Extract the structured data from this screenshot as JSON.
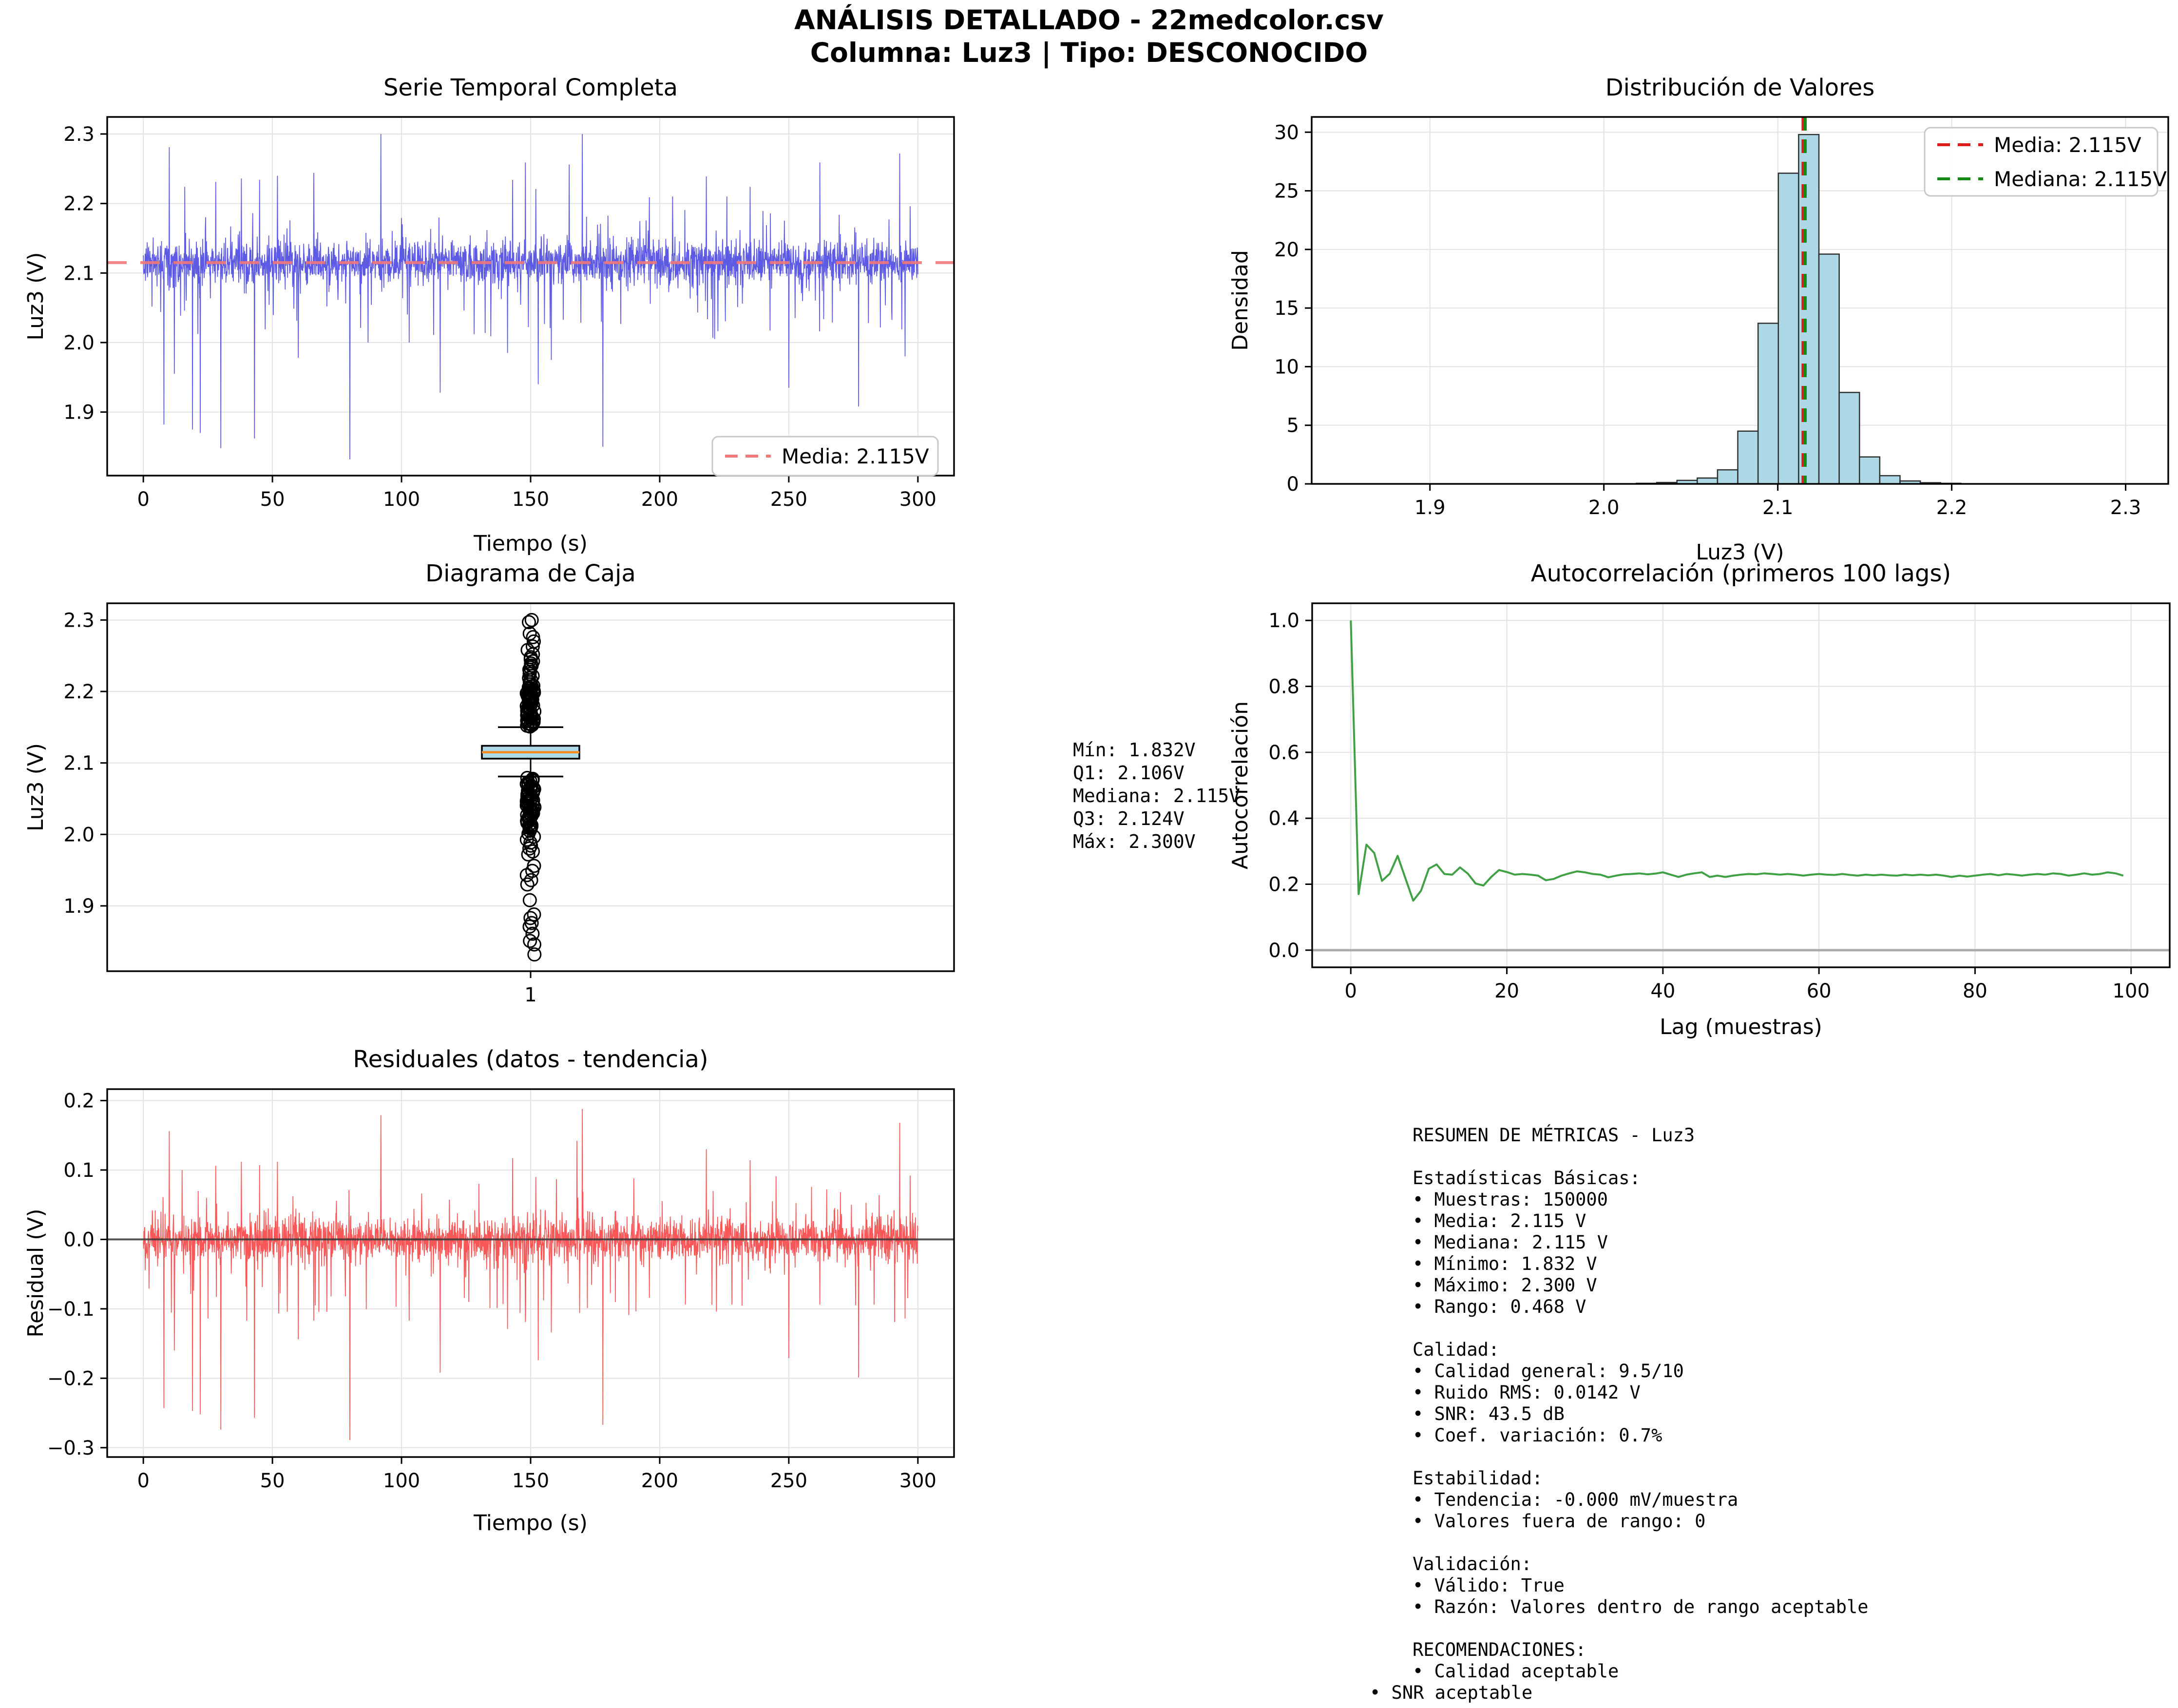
{
  "header": {
    "line1": "ANÁLISIS DETALLADO - 22medcolor.csv",
    "line2": "Columna: Luz3 | Tipo: DESCONOCIDO"
  },
  "annotations": {
    "box_stats": {
      "lines": [
        "Mín: 1.832V",
        "Q1: 2.106V",
        "Mediana: 2.115V",
        "Q3: 2.124V",
        "Máx: 2.300V"
      ]
    },
    "metrics_panel": {
      "lines": [
        "RESUMEN DE MÉTRICAS - Luz3",
        "",
        "Estadísticas Básicas:",
        "• Muestras: 150000",
        "• Media: 2.115 V",
        "• Mediana: 2.115 V",
        "• Mínimo: 1.832 V",
        "• Máximo: 2.300 V",
        "• Rango: 0.468 V",
        "",
        "Calidad:",
        "• Calidad general: 9.5/10",
        "• Ruido RMS: 0.0142 V",
        "• SNR: 43.5 dB",
        "• Coef. variación: 0.7%",
        "",
        "Estabilidad:",
        "• Tendencia: -0.000 mV/muestra",
        "• Valores fuera de rango: 0",
        "",
        "Validación:",
        "• Válido: True",
        "• Razón: Valores dentro de rango aceptable",
        "",
        "RECOMENDACIONES:",
        "• Calidad aceptable",
        "• SNR aceptable"
      ]
    }
  },
  "chart_data": [
    {
      "id": "serie_temporal",
      "type": "line",
      "title": "Serie Temporal Completa",
      "xlabel": "Tiempo (s)",
      "ylabel": "Luz3 (V)",
      "xlim": [
        -14,
        314
      ],
      "ylim": [
        1.8086,
        2.3245
      ],
      "xticks": [
        {
          "v": 0,
          "l": "0"
        },
        {
          "v": 50,
          "l": "50"
        },
        {
          "v": 100,
          "l": "100"
        },
        {
          "v": 150,
          "l": "150"
        },
        {
          "v": 200,
          "l": "200"
        },
        {
          "v": 250,
          "l": "250"
        },
        {
          "v": 300,
          "l": "300"
        }
      ],
      "yticks": [
        {
          "v": 1.9,
          "l": "1.9"
        },
        {
          "v": 2.0,
          "l": "2.0"
        },
        {
          "v": 2.1,
          "l": "2.1"
        },
        {
          "v": 2.2,
          "l": "2.2"
        },
        {
          "v": 2.3,
          "l": "2.3"
        }
      ],
      "line_color": "#4b48e0",
      "mean_line": {
        "value": 2.115,
        "color": "#f07878",
        "label": "Media: 2.115V"
      },
      "legend": {
        "entries": [
          {
            "label": "Media: 2.115V",
            "color": "#f07878",
            "dashed": true
          }
        ]
      },
      "signal": {
        "n": 2600,
        "x_max": 300,
        "mean": 2.115,
        "sigma": 0.0155,
        "seed": 1337,
        "minor_down": {
          "prob": 0.022,
          "base": 0.035,
          "extra": 0.075
        },
        "minor_up": {
          "prob": 0.016,
          "base": 0.032,
          "extra": 0.045
        },
        "spikes_up": [
          [
            10,
            2.281
          ],
          [
            16,
            2.224
          ],
          [
            28,
            2.231
          ],
          [
            38,
            2.236
          ],
          [
            45,
            2.234
          ],
          [
            52,
            2.24
          ],
          [
            66,
            2.244
          ],
          [
            92,
            2.3
          ],
          [
            143,
            2.234
          ],
          [
            148,
            2.259
          ],
          [
            152,
            2.221
          ],
          [
            165,
            2.256
          ],
          [
            170,
            2.3
          ],
          [
            196,
            2.209
          ],
          [
            205,
            2.21
          ],
          [
            218,
            2.239
          ],
          [
            226,
            2.21
          ],
          [
            235,
            2.224
          ],
          [
            262,
            2.259
          ],
          [
            293,
            2.272
          ],
          [
            297,
            2.196
          ]
        ],
        "spikes_down": [
          [
            8,
            1.882
          ],
          [
            12,
            1.955
          ],
          [
            19,
            1.875
          ],
          [
            22,
            1.87
          ],
          [
            30,
            1.848
          ],
          [
            43,
            1.862
          ],
          [
            60,
            1.978
          ],
          [
            80,
            1.832
          ],
          [
            87,
            2.0
          ],
          [
            103,
            2.0
          ],
          [
            115,
            1.928
          ],
          [
            141,
            1.985
          ],
          [
            153,
            1.94
          ],
          [
            158,
            1.975
          ],
          [
            178,
            1.85
          ],
          [
            250,
            1.935
          ],
          [
            277,
            1.908
          ],
          [
            295,
            1.98
          ]
        ]
      }
    },
    {
      "id": "distribucion",
      "type": "histogram",
      "title": "Distribución de Valores",
      "xlabel": "Luz3 (V)",
      "ylabel": "Densidad",
      "xlim": [
        1.832,
        2.3245
      ],
      "ylim": [
        0,
        31.3
      ],
      "xticks": [
        {
          "v": 1.9,
          "l": "1.9"
        },
        {
          "v": 2.0,
          "l": "2.0"
        },
        {
          "v": 2.1,
          "l": "2.1"
        },
        {
          "v": 2.2,
          "l": "2.2"
        },
        {
          "v": 2.3,
          "l": "2.3"
        }
      ],
      "yticks": [
        {
          "v": 0,
          "l": "0"
        },
        {
          "v": 5,
          "l": "5"
        },
        {
          "v": 10,
          "l": "10"
        },
        {
          "v": 15,
          "l": "15"
        },
        {
          "v": 20,
          "l": "20"
        },
        {
          "v": 25,
          "l": "25"
        },
        {
          "v": 30,
          "l": "30"
        }
      ],
      "bar_color": "#add8e6",
      "bar_edge": "#2f2f2f",
      "bin_start": 2.0187,
      "bin_width": 0.01166,
      "densities": [
        0.05,
        0.12,
        0.3,
        0.5,
        1.2,
        4.5,
        13.7,
        26.5,
        29.8,
        19.6,
        7.8,
        2.3,
        0.7,
        0.25,
        0.1,
        0.05
      ],
      "mean_line": {
        "value": 2.1145,
        "color": "#dd1c1c",
        "label": "Media: 2.115V"
      },
      "median_line": {
        "value": 2.1158,
        "color": "#168a16",
        "label": "Mediana: 2.115V"
      },
      "legend": {
        "entries": [
          {
            "label": "Media: 2.115V",
            "color": "#dd1c1c",
            "dashed": true
          },
          {
            "label": "Mediana: 2.115V",
            "color": "#168a16",
            "dashed": true
          }
        ]
      }
    },
    {
      "id": "diagrama_caja",
      "type": "boxplot",
      "title": "Diagrama de Caja",
      "xlabel": "",
      "ylabel": "Luz3 (V)",
      "xlim": [
        0,
        2
      ],
      "ylim": [
        1.8086,
        2.3234
      ],
      "xticks": [
        {
          "v": 1,
          "l": "1"
        }
      ],
      "yticks": [
        {
          "v": 1.9,
          "l": "1.9"
        },
        {
          "v": 2.0,
          "l": "2.0"
        },
        {
          "v": 2.1,
          "l": "2.1"
        },
        {
          "v": 2.2,
          "l": "2.2"
        },
        {
          "v": 2.3,
          "l": "2.3"
        }
      ],
      "box": {
        "q1": 2.106,
        "median": 2.115,
        "q3": 2.124,
        "whisker_low": 2.081,
        "whisker_high": 2.15,
        "center": 1,
        "fill": "#add8e6",
        "edge": "#000000",
        "median_color": "#ff8c1a"
      },
      "outliers": {
        "seed": 77,
        "above_dense": {
          "from": 2.151,
          "to": 2.208,
          "count": 55
        },
        "above_mid": {
          "from": 2.21,
          "to": 2.248,
          "count": 14
        },
        "above_sparse": [
          2.252,
          2.258,
          2.263,
          2.27,
          2.276,
          2.281,
          2.297,
          2.3
        ],
        "below_dense": {
          "from": 2.008,
          "to": 2.079,
          "count": 60
        },
        "below_mid": {
          "from": 1.972,
          "to": 2.005,
          "count": 9
        },
        "below_sparse": [
          1.956,
          1.949,
          1.943,
          1.936,
          1.93,
          1.908,
          1.888,
          1.883,
          1.876,
          1.871,
          1.861,
          1.851,
          1.846,
          1.832
        ]
      }
    },
    {
      "id": "autocorrelacion",
      "type": "line_values",
      "title": "Autocorrelación (primeros 100 lags)",
      "xlabel": "Lag (muestras)",
      "ylabel": "Autocorrelación",
      "xlim": [
        -4.95,
        104.95
      ],
      "ylim": [
        -0.052,
        1.052
      ],
      "xticks": [
        {
          "v": 0,
          "l": "0"
        },
        {
          "v": 20,
          "l": "20"
        },
        {
          "v": 40,
          "l": "40"
        },
        {
          "v": 60,
          "l": "60"
        },
        {
          "v": 80,
          "l": "80"
        },
        {
          "v": 100,
          "l": "100"
        }
      ],
      "yticks": [
        {
          "v": 0.0,
          "l": "0.0"
        },
        {
          "v": 0.2,
          "l": "0.2"
        },
        {
          "v": 0.4,
          "l": "0.4"
        },
        {
          "v": 0.6,
          "l": "0.6"
        },
        {
          "v": 0.8,
          "l": "0.8"
        },
        {
          "v": 1.0,
          "l": "1.0"
        }
      ],
      "line_color": "#3fa044",
      "zero_line": {
        "value": 0,
        "color": "#9a9a9a"
      },
      "values": [
        1.0,
        0.17,
        0.32,
        0.295,
        0.21,
        0.232,
        0.286,
        0.218,
        0.15,
        0.18,
        0.247,
        0.26,
        0.231,
        0.229,
        0.251,
        0.232,
        0.202,
        0.196,
        0.222,
        0.243,
        0.237,
        0.229,
        0.231,
        0.229,
        0.226,
        0.212,
        0.216,
        0.226,
        0.233,
        0.239,
        0.236,
        0.231,
        0.229,
        0.221,
        0.226,
        0.23,
        0.231,
        0.233,
        0.23,
        0.232,
        0.236,
        0.229,
        0.222,
        0.229,
        0.233,
        0.236,
        0.222,
        0.226,
        0.222,
        0.226,
        0.229,
        0.231,
        0.23,
        0.233,
        0.231,
        0.229,
        0.231,
        0.229,
        0.226,
        0.229,
        0.231,
        0.229,
        0.228,
        0.231,
        0.228,
        0.226,
        0.229,
        0.227,
        0.229,
        0.227,
        0.226,
        0.229,
        0.227,
        0.229,
        0.227,
        0.229,
        0.226,
        0.222,
        0.226,
        0.223,
        0.226,
        0.229,
        0.231,
        0.227,
        0.231,
        0.229,
        0.226,
        0.229,
        0.231,
        0.229,
        0.233,
        0.231,
        0.226,
        0.229,
        0.233,
        0.229,
        0.231,
        0.236,
        0.233,
        0.226
      ]
    },
    {
      "id": "residuales",
      "type": "line",
      "title": "Residuales (datos - tendencia)",
      "xlabel": "Tiempo (s)",
      "ylabel": "Residual (V)",
      "xlim": [
        -14,
        314
      ],
      "ylim": [
        -0.3135,
        0.2165
      ],
      "xticks": [
        {
          "v": 0,
          "l": "0"
        },
        {
          "v": 50,
          "l": "50"
        },
        {
          "v": 100,
          "l": "100"
        },
        {
          "v": 150,
          "l": "150"
        },
        {
          "v": 200,
          "l": "200"
        },
        {
          "v": 250,
          "l": "250"
        },
        {
          "v": 300,
          "l": "300"
        }
      ],
      "yticks": [
        {
          "v": -0.3,
          "l": "−0.3"
        },
        {
          "v": -0.2,
          "l": "−0.2"
        },
        {
          "v": -0.1,
          "l": "−0.1"
        },
        {
          "v": 0.0,
          "l": "0.0"
        },
        {
          "v": 0.1,
          "l": "0.1"
        },
        {
          "v": 0.2,
          "l": "0.2"
        }
      ],
      "line_color": "#f64545",
      "zero_line": {
        "value": 0,
        "color": "#3a3a3a"
      },
      "signal": {
        "n": 2600,
        "x_max": 300,
        "mean": 0,
        "sigma": 0.0155,
        "seed": 2024,
        "minor_down": {
          "prob": 0.022,
          "base": 0.035,
          "extra": 0.075
        },
        "minor_up": {
          "prob": 0.016,
          "base": 0.032,
          "extra": 0.045
        },
        "spikes_up": [
          [
            10,
            0.156
          ],
          [
            15,
            0.1
          ],
          [
            28,
            0.106
          ],
          [
            38,
            0.112
          ],
          [
            45,
            0.107
          ],
          [
            52,
            0.112
          ],
          [
            60,
            0.094
          ],
          [
            66,
            0.123
          ],
          [
            80,
            0.088
          ],
          [
            92,
            0.179
          ],
          [
            103,
            0.08
          ],
          [
            115,
            0.086
          ],
          [
            130,
            0.08
          ],
          [
            143,
            0.117
          ],
          [
            148,
            0.144
          ],
          [
            152,
            0.09
          ],
          [
            160,
            0.087
          ],
          [
            168,
            0.142
          ],
          [
            170,
            0.188
          ],
          [
            178,
            0.094
          ],
          [
            190,
            0.088
          ],
          [
            196,
            0.099
          ],
          [
            218,
            0.13
          ],
          [
            235,
            0.114
          ],
          [
            245,
            0.091
          ],
          [
            262,
            0.151
          ],
          [
            270,
            0.068
          ],
          [
            285,
            0.064
          ],
          [
            293,
            0.168
          ],
          [
            297,
            0.092
          ]
        ],
        "spikes_down": [
          [
            8,
            -0.243
          ],
          [
            12,
            -0.16
          ],
          [
            19,
            -0.247
          ],
          [
            22,
            -0.252
          ],
          [
            25,
            -0.114
          ],
          [
            30,
            -0.274
          ],
          [
            40,
            -0.117
          ],
          [
            43,
            -0.257
          ],
          [
            60,
            -0.144
          ],
          [
            66,
            -0.117
          ],
          [
            80,
            -0.289
          ],
          [
            103,
            -0.117
          ],
          [
            115,
            -0.192
          ],
          [
            126,
            -0.09
          ],
          [
            137,
            -0.099
          ],
          [
            141,
            -0.129
          ],
          [
            148,
            -0.119
          ],
          [
            153,
            -0.174
          ],
          [
            158,
            -0.134
          ],
          [
            172,
            -0.099
          ],
          [
            178,
            -0.267
          ],
          [
            188,
            -0.109
          ],
          [
            196,
            -0.084
          ],
          [
            210,
            -0.094
          ],
          [
            222,
            -0.104
          ],
          [
            228,
            -0.094
          ],
          [
            250,
            -0.171
          ],
          [
            262,
            -0.094
          ],
          [
            277,
            -0.199
          ],
          [
            283,
            -0.094
          ],
          [
            291,
            -0.119
          ],
          [
            295,
            -0.114
          ]
        ]
      }
    }
  ]
}
